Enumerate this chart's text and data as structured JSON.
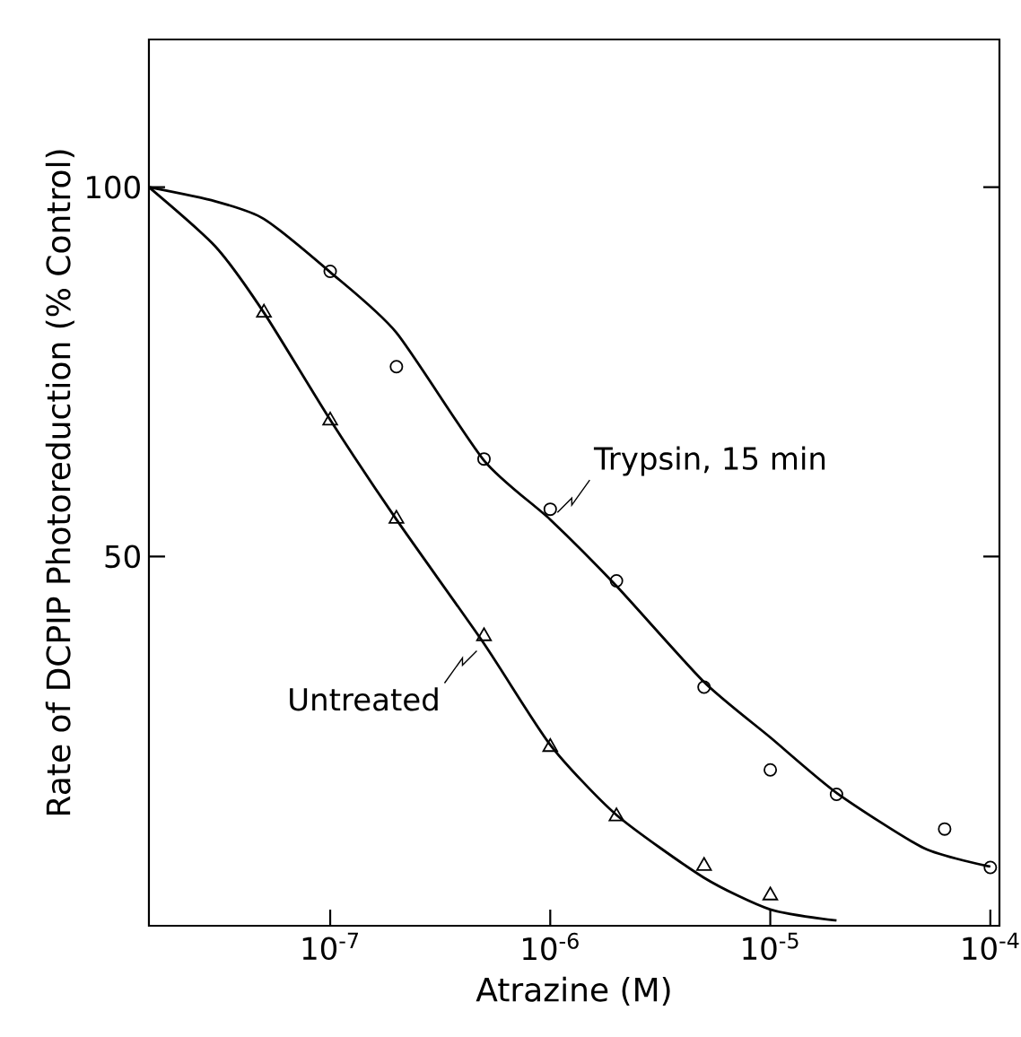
{
  "chart_data": {
    "type": "line",
    "xlabel": "Atrazine (M)",
    "ylabel": "Rate of DCPIP Photoreduction (% Control)",
    "log": "x",
    "xlim": [
      1.5e-08,
      0.00011
    ],
    "ylim": [
      0,
      120
    ],
    "xticks": [
      {
        "value": 1e-07,
        "label": "10$^{-7}$"
      },
      {
        "value": 1e-06,
        "label": "10$^{-6}$"
      },
      {
        "value": 1e-05,
        "label": "10$^{-5}$"
      },
      {
        "value": 0.0001,
        "label": "10$^{-4}$"
      }
    ],
    "yticks": [
      50,
      100
    ],
    "grid": false,
    "series": [
      {
        "name": "Trypsin, 15 min",
        "color": "#000000",
        "marker": "none",
        "x": [
          1.5e-08,
          3e-08,
          5e-08,
          1e-07,
          2e-07,
          5e-07,
          1e-06,
          2e-06,
          5e-06,
          1e-05,
          2e-05,
          5e-05,
          0.0001
        ],
        "values": [
          100,
          98.1,
          95.7,
          88.5,
          80.3,
          63,
          55,
          46,
          33,
          25.5,
          18,
          10.5,
          8
        ]
      },
      {
        "name": "Untreated",
        "color": "#000000",
        "marker": "none",
        "x": [
          1.5e-08,
          3e-08,
          5e-08,
          1e-07,
          2e-07,
          5e-07,
          1e-06,
          2e-06,
          5e-06,
          1e-05,
          2e-05
        ],
        "values": [
          100,
          92,
          83,
          68.5,
          55,
          38.2,
          24.5,
          15,
          6.5,
          2.2,
          0.7
        ]
      },
      {
        "type": "scatter",
        "color": "#000000",
        "marker": "circle",
        "x": [
          1e-07,
          2e-07,
          5e-07,
          1e-06,
          2e-06,
          5e-06,
          1e-05,
          2e-05,
          6.2e-05,
          0.0001
        ],
        "values": [
          88.6,
          75.7,
          63.2,
          56.4,
          46.7,
          32.3,
          21.1,
          17.8,
          13.1,
          7.9
        ]
      },
      {
        "type": "scatter",
        "color": "#000000",
        "marker": "triangle",
        "x": [
          5e-08,
          1e-07,
          2e-07,
          5e-07,
          1e-06,
          2e-06,
          5e-06,
          1e-05
        ],
        "values": [
          83.0,
          68.4,
          55.1,
          39.2,
          24.2,
          14.8,
          8.1,
          4.1
        ]
      }
    ]
  }
}
